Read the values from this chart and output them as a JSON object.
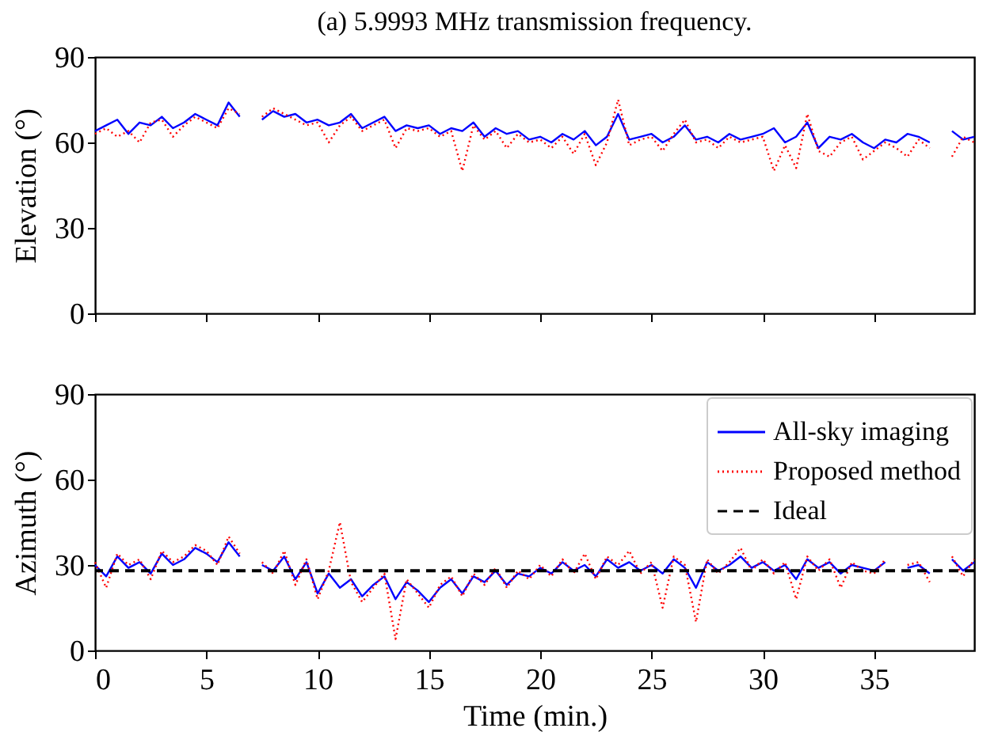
{
  "chart_data": [
    {
      "type": "line",
      "title": "(a) 5.9993 MHz transmission frequency.",
      "ylabel": "Elevation (°)",
      "xlim": [
        0,
        39.5
      ],
      "xticks": [
        0,
        5,
        10,
        15,
        20,
        25,
        30,
        35
      ],
      "ylim": [
        0,
        90
      ],
      "yticks": [
        0,
        30,
        60,
        90
      ],
      "tick_labels": "y",
      "grid": false,
      "legend": false,
      "marker": "none",
      "x": [
        0,
        0.5,
        1,
        1.5,
        2,
        2.5,
        3,
        3.5,
        4,
        4.5,
        5,
        5.5,
        6,
        6.5,
        7,
        7.5,
        8,
        8.5,
        9,
        9.5,
        10,
        10.5,
        11,
        11.5,
        12,
        12.5,
        13,
        13.5,
        14,
        14.5,
        15,
        15.5,
        16,
        16.5,
        17,
        17.5,
        18,
        18.5,
        19,
        19.5,
        20,
        20.5,
        21,
        21.5,
        22,
        22.5,
        23,
        23.5,
        24,
        24.5,
        25,
        25.5,
        26,
        26.5,
        27,
        27.5,
        28,
        28.5,
        29,
        29.5,
        30,
        30.5,
        31,
        31.5,
        32,
        32.5,
        33,
        33.5,
        34,
        34.5,
        35,
        35.5,
        36,
        36.5,
        37,
        37.5,
        38,
        38.5,
        39,
        39.5
      ],
      "series": [
        {
          "color": "#0000ff",
          "line_style": "solid",
          "values": [
            64,
            66,
            68,
            63,
            67,
            66,
            69,
            65,
            67,
            70,
            68,
            66,
            74,
            69,
            null,
            68,
            71,
            69,
            70,
            67,
            68,
            66,
            67,
            70,
            65,
            67,
            69,
            64,
            66,
            65,
            66,
            63,
            65,
            64,
            67,
            62,
            65,
            63,
            64,
            61,
            62,
            60,
            63,
            61,
            64,
            59,
            62,
            70,
            61,
            62,
            63,
            60,
            62,
            66,
            61,
            62,
            60,
            63,
            61,
            62,
            63,
            65,
            60,
            62,
            67,
            58,
            62,
            61,
            63,
            60,
            58,
            61,
            60,
            63,
            62,
            60,
            null,
            64,
            61,
            62
          ]
        },
        {
          "color": "#ff0000",
          "line_style": "dotted",
          "values": [
            63,
            65,
            62,
            64,
            60,
            67,
            68,
            62,
            66,
            69,
            67,
            65,
            72,
            70,
            null,
            69,
            72,
            70,
            68,
            66,
            67,
            60,
            66,
            69,
            64,
            66,
            68,
            58,
            65,
            64,
            65,
            62,
            64,
            50,
            66,
            61,
            64,
            58,
            63,
            60,
            61,
            58,
            62,
            56,
            63,
            52,
            60,
            75,
            59,
            61,
            62,
            57,
            63,
            68,
            60,
            61,
            58,
            62,
            60,
            61,
            62,
            50,
            59,
            51,
            70,
            57,
            55,
            60,
            62,
            54,
            57,
            60,
            58,
            55,
            61,
            58,
            null,
            55,
            62,
            60
          ]
        }
      ]
    },
    {
      "type": "line",
      "xlabel": "Time (min.)",
      "ylabel": "Azimuth (°)",
      "xlim": [
        0,
        39.5
      ],
      "xticks": [
        0,
        5,
        10,
        15,
        20,
        25,
        30,
        35
      ],
      "ylim": [
        0,
        90
      ],
      "yticks": [
        0,
        30,
        60,
        90
      ],
      "grid": false,
      "legend": "top right",
      "marker": "none",
      "x": [
        0,
        0.5,
        1,
        1.5,
        2,
        2.5,
        3,
        3.5,
        4,
        4.5,
        5,
        5.5,
        6,
        6.5,
        7,
        7.5,
        8,
        8.5,
        9,
        9.5,
        10,
        10.5,
        11,
        11.5,
        12,
        12.5,
        13,
        13.5,
        14,
        14.5,
        15,
        15.5,
        16,
        16.5,
        17,
        17.5,
        18,
        18.5,
        19,
        19.5,
        20,
        20.5,
        21,
        21.5,
        22,
        22.5,
        23,
        23.5,
        24,
        24.5,
        25,
        25.5,
        26,
        26.5,
        27,
        27.5,
        28,
        28.5,
        29,
        29.5,
        30,
        30.5,
        31,
        31.5,
        32,
        32.5,
        33,
        33.5,
        34,
        34.5,
        35,
        35.5,
        36,
        36.5,
        37,
        37.5,
        38,
        38.5,
        39,
        39.5
      ],
      "series": [
        {
          "name": "All-sky imaging",
          "color": "#0000ff",
          "line_style": "solid",
          "values": [
            30,
            26,
            33,
            29,
            31,
            27,
            34,
            30,
            32,
            36,
            34,
            31,
            38,
            33,
            null,
            30,
            28,
            33,
            25,
            31,
            20,
            27,
            22,
            25,
            19,
            23,
            26,
            18,
            24,
            21,
            17,
            22,
            25,
            20,
            26,
            24,
            28,
            23,
            27,
            26,
            29,
            27,
            31,
            28,
            30,
            26,
            32,
            29,
            31,
            28,
            30,
            27,
            32,
            29,
            22,
            31,
            28,
            30,
            33,
            29,
            31,
            28,
            30,
            25,
            32,
            29,
            31,
            27,
            30,
            29,
            28,
            31,
            null,
            29,
            30,
            27,
            null,
            32,
            28,
            31
          ]
        },
        {
          "name": "Proposed method",
          "color": "#ff0000",
          "line_style": "dotted",
          "values": [
            31,
            22,
            34,
            30,
            32,
            25,
            35,
            31,
            33,
            37,
            35,
            30,
            40,
            34,
            null,
            31,
            27,
            35,
            23,
            32,
            18,
            28,
            45,
            24,
            17,
            22,
            27,
            4,
            25,
            20,
            15,
            23,
            26,
            19,
            27,
            23,
            29,
            22,
            28,
            25,
            30,
            26,
            32,
            27,
            34,
            25,
            33,
            30,
            35,
            27,
            31,
            15,
            33,
            30,
            10,
            32,
            27,
            31,
            36,
            28,
            32,
            27,
            31,
            18,
            33,
            28,
            32,
            22,
            31,
            28,
            27,
            32,
            null,
            30,
            31,
            24,
            null,
            33,
            26,
            32
          ]
        }
      ],
      "ref_lines": [
        {
          "axis": "y",
          "value": 28,
          "label": "Ideal",
          "color": "#000000",
          "line_style": "dashed"
        }
      ]
    }
  ]
}
